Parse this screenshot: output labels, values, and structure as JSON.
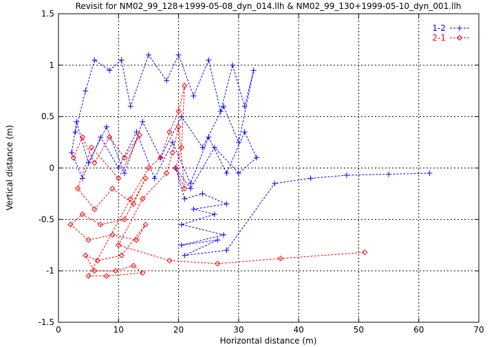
{
  "chart_data": {
    "type": "scatter",
    "title": "Revisit for NM02_99_128+1999-05-08_dyn_014.llh & NM02_99_130+1999-05-10_dyn_001.llh",
    "xlabel": "Horizontal distance (m)",
    "ylabel": "Vertical distance (m)",
    "xlim": [
      0,
      70
    ],
    "ylim": [
      -1.5,
      1.5
    ],
    "x_ticks": [
      "0",
      "10",
      "20",
      "30",
      "40",
      "50",
      "60",
      "70"
    ],
    "y_ticks": [
      "-1.5",
      "-1",
      "-0.5",
      "0",
      "0.5",
      "1",
      "1.5"
    ],
    "x_tick_values": [
      0,
      10,
      20,
      30,
      40,
      50,
      60,
      70
    ],
    "y_tick_values": [
      -1.5,
      -1,
      -0.5,
      0,
      0.5,
      1,
      1.5
    ],
    "grid": true,
    "legend_position": "top-right",
    "series": [
      {
        "name": "1-2",
        "color": "#0000ff",
        "marker": "plus",
        "line": "dashed",
        "points": [
          [
            2.8,
            0.35
          ],
          [
            4.5,
            0.75
          ],
          [
            6.0,
            1.05
          ],
          [
            8.5,
            0.95
          ],
          [
            10.5,
            1.05
          ],
          [
            12.0,
            0.6
          ],
          [
            15.0,
            1.1
          ],
          [
            18.0,
            0.85
          ],
          [
            20.0,
            1.1
          ],
          [
            22.5,
            0.7
          ],
          [
            25.0,
            1.05
          ],
          [
            27.0,
            0.55
          ],
          [
            29.0,
            1.0
          ],
          [
            31.0,
            0.6
          ],
          [
            32.5,
            0.95
          ],
          [
            30.0,
            0.25
          ],
          [
            27.5,
            0.6
          ],
          [
            24.0,
            0.2
          ],
          [
            20.5,
            0.5
          ],
          [
            17.0,
            0.1
          ],
          [
            14.0,
            0.45
          ],
          [
            11.0,
            -0.05
          ],
          [
            8.0,
            0.4
          ],
          [
            5.0,
            0.05
          ],
          [
            3.0,
            0.45
          ],
          [
            2.2,
            0.15
          ],
          [
            4.0,
            -0.1
          ],
          [
            7.0,
            0.3
          ],
          [
            10.0,
            0.0
          ],
          [
            13.0,
            0.35
          ],
          [
            16.0,
            -0.1
          ],
          [
            19.0,
            0.25
          ],
          [
            22.0,
            -0.15
          ],
          [
            25.0,
            0.3
          ],
          [
            28.0,
            -0.05
          ],
          [
            31.0,
            0.35
          ],
          [
            33.0,
            0.1
          ],
          [
            30.0,
            -0.05
          ],
          [
            26.0,
            0.2
          ],
          [
            22.0,
            -0.2
          ],
          [
            19.5,
            0.0
          ],
          [
            21.0,
            -0.3
          ],
          [
            24.0,
            -0.25
          ],
          [
            28.0,
            -0.35
          ],
          [
            22.5,
            -0.4
          ],
          [
            26.0,
            -0.45
          ],
          [
            20.5,
            -0.55
          ],
          [
            27.5,
            -0.65
          ],
          [
            20.5,
            -0.75
          ],
          [
            26.5,
            -0.7
          ],
          [
            21.0,
            -0.85
          ],
          [
            28.0,
            -0.8
          ],
          [
            36.0,
            -0.15
          ],
          [
            42.0,
            -0.1
          ],
          [
            48.0,
            -0.07
          ],
          [
            55.0,
            -0.06
          ],
          [
            61.8,
            -0.05
          ]
        ]
      },
      {
        "name": "2-1",
        "color": "#ff0000",
        "marker": "diamond",
        "line": "dashed",
        "points": [
          [
            2.5,
            0.1
          ],
          [
            4.0,
            0.3
          ],
          [
            6.0,
            0.05
          ],
          [
            8.5,
            0.3
          ],
          [
            11.0,
            0.1
          ],
          [
            13.5,
            0.32
          ],
          [
            10.0,
            -0.1
          ],
          [
            5.5,
            0.2
          ],
          [
            3.2,
            -0.2
          ],
          [
            6.0,
            -0.4
          ],
          [
            9.0,
            -0.2
          ],
          [
            12.5,
            -0.35
          ],
          [
            14.5,
            -0.1
          ],
          [
            11.0,
            -0.5
          ],
          [
            7.0,
            -0.55
          ],
          [
            4.0,
            -0.45
          ],
          [
            2.0,
            -0.55
          ],
          [
            5.0,
            -0.7
          ],
          [
            9.0,
            -0.65
          ],
          [
            13.0,
            -0.7
          ],
          [
            14.5,
            -0.55
          ],
          [
            10.5,
            -0.85
          ],
          [
            6.5,
            -0.9
          ],
          [
            4.5,
            -0.85
          ],
          [
            6.0,
            -1.0
          ],
          [
            9.5,
            -1.0
          ],
          [
            12.5,
            -0.95
          ],
          [
            14.0,
            -1.02
          ],
          [
            8.0,
            -1.05
          ],
          [
            5.0,
            -1.05
          ],
          [
            12.0,
            -0.3
          ],
          [
            15.0,
            0.0
          ],
          [
            17.0,
            0.1
          ],
          [
            18.5,
            0.35
          ],
          [
            20.0,
            0.55
          ],
          [
            21.0,
            0.8
          ],
          [
            20.5,
            0.2
          ],
          [
            19.5,
            0.0
          ],
          [
            21.0,
            -0.2
          ],
          [
            20.0,
            0.4
          ],
          [
            19.0,
            0.15
          ],
          [
            18.0,
            -0.05
          ],
          [
            14.0,
            -0.3
          ],
          [
            10.0,
            -0.75
          ],
          [
            18.5,
            -0.9
          ],
          [
            26.5,
            -0.93
          ],
          [
            37.0,
            -0.88
          ],
          [
            51.0,
            -0.82
          ]
        ]
      }
    ]
  }
}
